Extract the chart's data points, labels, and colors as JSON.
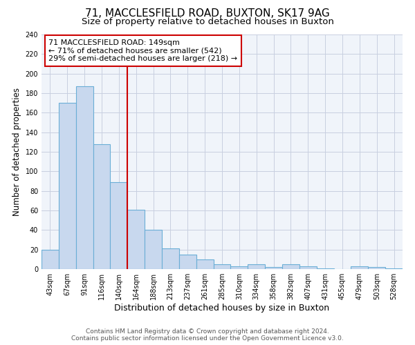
{
  "title": "71, MACCLESFIELD ROAD, BUXTON, SK17 9AG",
  "subtitle": "Size of property relative to detached houses in Buxton",
  "xlabel": "Distribution of detached houses by size in Buxton",
  "ylabel": "Number of detached properties",
  "bar_labels": [
    "43sqm",
    "67sqm",
    "91sqm",
    "116sqm",
    "140sqm",
    "164sqm",
    "188sqm",
    "213sqm",
    "237sqm",
    "261sqm",
    "285sqm",
    "310sqm",
    "334sqm",
    "358sqm",
    "382sqm",
    "407sqm",
    "431sqm",
    "455sqm",
    "479sqm",
    "503sqm",
    "528sqm"
  ],
  "bar_values": [
    20,
    170,
    187,
    128,
    89,
    61,
    40,
    21,
    15,
    10,
    5,
    3,
    5,
    2,
    5,
    3,
    1,
    0,
    3,
    2,
    1
  ],
  "bar_color": "#c8d8ee",
  "bar_edge_color": "#6aaed6",
  "vline_x_index": 4.5,
  "vline_color": "#cc0000",
  "annotation_line1": "71 MACCLESFIELD ROAD: 149sqm",
  "annotation_line2": "← 71% of detached houses are smaller (542)",
  "annotation_line3": "29% of semi-detached houses are larger (218) →",
  "annotation_box_color": "#ffffff",
  "annotation_box_edgecolor": "#cc0000",
  "ylim": [
    0,
    240
  ],
  "yticks": [
    0,
    20,
    40,
    60,
    80,
    100,
    120,
    140,
    160,
    180,
    200,
    220,
    240
  ],
  "footer1": "Contains HM Land Registry data © Crown copyright and database right 2024.",
  "footer2": "Contains public sector information licensed under the Open Government Licence v3.0.",
  "title_fontsize": 11,
  "subtitle_fontsize": 9.5,
  "xlabel_fontsize": 9,
  "ylabel_fontsize": 8.5,
  "tick_fontsize": 7,
  "annotation_fontsize": 8,
  "footer_fontsize": 6.5,
  "background_color": "#f0f4fa"
}
